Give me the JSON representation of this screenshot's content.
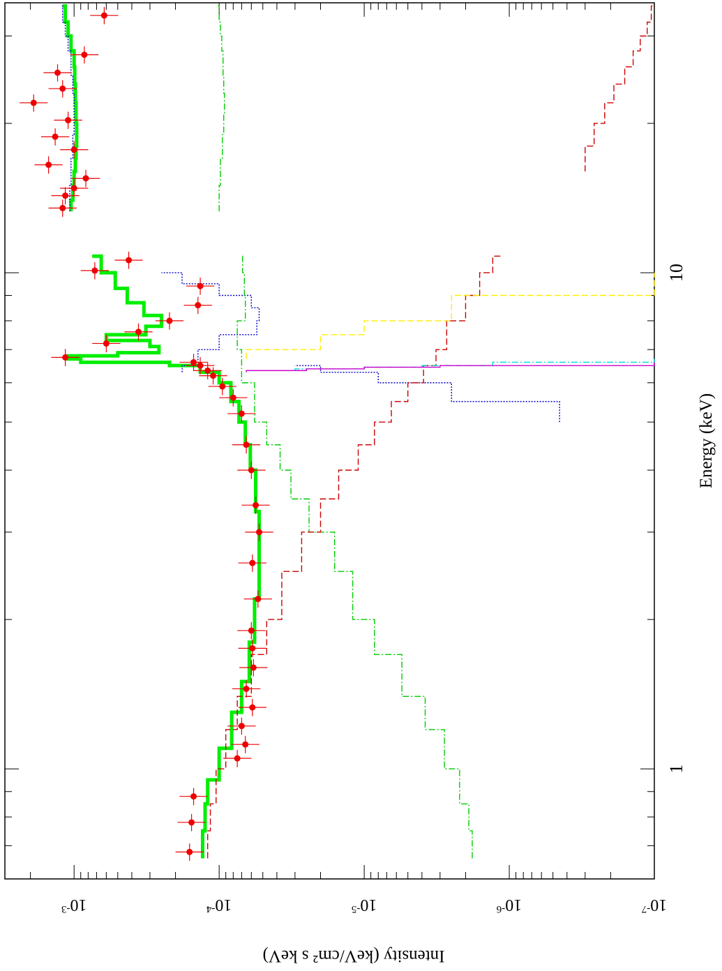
{
  "chart_data": {
    "type": "line",
    "orientation": "rotated-90",
    "xlabel": "Energy (keV)",
    "ylabel": "Intensity (keV/cm² s keV)",
    "x_scale": "log",
    "y_scale": "log",
    "xlim": [
      0.6,
      35
    ],
    "ylim": [
      1e-07,
      0.003
    ],
    "x_tick_labels": [
      {
        "value": 1,
        "label": "1"
      },
      {
        "value": 10,
        "label": "10"
      }
    ],
    "y_tick_labels": [
      {
        "value": 0.001,
        "base": "10",
        "exp": "-3"
      },
      {
        "value": 0.0001,
        "base": "10",
        "exp": "-4"
      },
      {
        "value": 1e-05,
        "base": "10",
        "exp": "-5"
      },
      {
        "value": 1e-06,
        "base": "10",
        "exp": "-6"
      },
      {
        "value": 1e-07,
        "base": "10",
        "exp": "-7"
      }
    ],
    "data_points": {
      "color": "#ee0000",
      "x": [
        0.68,
        0.78,
        0.88,
        1.05,
        1.12,
        1.22,
        1.33,
        1.45,
        1.6,
        1.75,
        1.9,
        2.2,
        2.6,
        3.0,
        3.4,
        4.0,
        4.5,
        5.2,
        5.6,
        5.9,
        6.2,
        6.35,
        6.5,
        6.6,
        6.75,
        7.2,
        7.6,
        8.0,
        8.6,
        9.4,
        10.1,
        10.6,
        13.5,
        14.3,
        14.8,
        15.5,
        16.5,
        17.7,
        18.8,
        20.3,
        22.0,
        23.5,
        25.3,
        27.5,
        33.0
      ],
      "y": [
        0.00016,
        0.000155,
        0.00015,
        7.5e-05,
        6.6e-05,
        7e-05,
        5.9e-05,
        6.5e-05,
        5.8e-05,
        5.9e-05,
        6e-05,
        5.4e-05,
        5.9e-05,
        5.3e-05,
        5.6e-05,
        6e-05,
        6.5e-05,
        7e-05,
        8e-05,
        9.5e-05,
        0.00011,
        0.00012,
        0.000135,
        0.00015,
        0.00115,
        0.0006,
        0.00036,
        0.00022,
        0.00014,
        0.000135,
        0.00072,
        0.00042,
        0.0012,
        0.00115,
        0.001,
        0.00083,
        0.0015,
        0.001,
        0.00135,
        0.0011,
        0.0019,
        0.0012,
        0.0013,
        0.00085,
        0.00062
      ]
    },
    "series": [
      {
        "color": "#00ee00",
        "style": "thick-solid",
        "x": [
          0.66,
          0.75,
          0.85,
          0.95,
          1.1,
          1.3,
          1.5,
          1.8,
          2.2,
          2.7,
          3.3,
          4.0,
          4.5,
          5.0,
          5.5,
          6.0,
          6.3,
          6.5,
          6.6,
          6.7,
          6.8,
          6.9,
          7.1,
          7.3,
          7.5,
          7.8,
          8.2,
          8.7,
          9.3,
          10.0,
          10.8
        ],
        "y": [
          0.00013,
          0.000125,
          0.00012,
          0.0001,
          8.2e-05,
          7e-05,
          6.2e-05,
          5.7e-05,
          5.3e-05,
          5.3e-05,
          5.6e-05,
          6.1e-05,
          6.6e-05,
          7.3e-05,
          8.3e-05,
          0.0001,
          0.000135,
          0.00022,
          0.0009,
          0.0011,
          0.0005,
          0.00026,
          0.0003,
          0.0006,
          0.00032,
          0.00025,
          0.00033,
          0.00043,
          0.00052,
          0.00065,
          0.00075
        ]
      },
      {
        "color": "#00ee00",
        "style": "thick-solid",
        "x": [
          13.3,
          14,
          15,
          16,
          17,
          18,
          19,
          20,
          22,
          24,
          26,
          28,
          30,
          32,
          34.5
        ],
        "y": [
          0.00105,
          0.00102,
          0.001,
          0.00098,
          0.00097,
          0.00096,
          0.00096,
          0.00097,
          0.00098,
          0.00099,
          0.001,
          0.00105,
          0.0011,
          0.00115,
          0.0012
        ]
      },
      {
        "color": "#0000cc",
        "style": "dotted",
        "x": [
          6.3,
          6.5,
          7.0,
          7.5,
          8.0,
          8.5,
          9.0,
          9.5,
          10.0
        ],
        "y": [
          0.00018,
          0.00014,
          0.0001,
          5.5e-05,
          5.3e-05,
          6e-05,
          0.0001,
          0.00018,
          0.00025
        ]
      },
      {
        "color": "#0000cc",
        "style": "dotted",
        "x": [
          13.3,
          15,
          17,
          19,
          21,
          23,
          25,
          28,
          30,
          32,
          34.5
        ],
        "y": [
          0.00107,
          0.00105,
          0.00102,
          0.001,
          0.001,
          0.00102,
          0.00105,
          0.0011,
          0.00115,
          0.0012,
          0.00122
        ]
      },
      {
        "color": "#0000cc",
        "style": "dotted",
        "x": [
          5.0,
          5.5,
          6.0,
          6.3,
          6.5
        ],
        "y": [
          4.5e-07,
          2.5e-06,
          8e-06,
          2e-05,
          3e-05
        ]
      },
      {
        "color": "#00cc00",
        "style": "dashdot",
        "x": [
          0.66,
          0.75,
          0.85,
          1.0,
          1.2,
          1.4,
          1.7,
          2.0,
          2.5,
          3.0,
          3.5,
          4.0,
          4.5,
          5.0,
          6.0,
          7.0,
          8.0,
          9.0,
          10.0,
          10.8
        ],
        "y": [
          1.8e-06,
          1.9e-06,
          2.2e-06,
          2.8e-06,
          3.8e-06,
          5.5e-06,
          8.5e-06,
          1.2e-05,
          1.6e-05,
          2.4e-05,
          3.2e-05,
          3.8e-05,
          4.7e-05,
          5.7e-05,
          7e-05,
          7.5e-05,
          6.6e-05,
          6.7e-05,
          6.9e-05,
          7e-05
        ]
      },
      {
        "color": "#00cc00",
        "style": "dashdot",
        "x": [
          13.3,
          15,
          17,
          19,
          21,
          23,
          25,
          28,
          30,
          32,
          34.5
        ],
        "y": [
          0.0001,
          9.8e-05,
          9.5e-05,
          9.3e-05,
          9.2e-05,
          9.3e-05,
          9.4e-05,
          9.6e-05,
          9.8e-05,
          0.0001,
          0.000102
        ]
      },
      {
        "color": "#cc0000",
        "style": "dashed",
        "x": [
          0.66,
          0.75,
          0.85,
          1.0,
          1.2,
          1.4,
          1.7,
          2.0,
          2.5,
          3.0,
          3.5,
          4.0,
          4.5,
          5.0,
          5.5,
          6.0,
          6.5,
          7.0,
          8.0,
          9.0,
          10.0,
          10.8
        ],
        "y": [
          0.00012,
          0.000115,
          0.000105,
          9e-05,
          7.5e-05,
          6e-05,
          4.7e-05,
          3.7e-05,
          2.7e-05,
          2e-05,
          1.5e-05,
          1.1e-05,
          8.5e-06,
          6.5e-06,
          5e-06,
          3.9e-06,
          3.2e-06,
          2.7e-06,
          2e-06,
          1.6e-06,
          1.3e-06,
          1.1e-06
        ]
      },
      {
        "color": "#cc0000",
        "style": "dashed",
        "x": [
          16,
          18,
          20,
          22,
          24,
          26,
          28,
          30,
          32,
          34.5
        ],
        "y": [
          3e-07,
          2.6e-07,
          2.2e-07,
          1.9e-07,
          1.6e-07,
          1.4e-07,
          1.25e-07,
          1.12e-07,
          1.05e-07,
          1e-07
        ]
      },
      {
        "color": "#ffee00",
        "style": "dashed",
        "x": [
          6.7,
          7.0,
          7.5,
          8.0,
          9.0,
          10.0
        ],
        "y": [
          6.5e-05,
          2e-05,
          1e-05,
          2.5e-06,
          1e-07,
          1e-07
        ]
      },
      {
        "color": "#00dddd",
        "style": "dashdot",
        "x": [
          6.35,
          6.4,
          6.45,
          6.5,
          6.6,
          6.7
        ],
        "y": [
          3e-05,
          1e-05,
          4e-06,
          1.3e-06,
          1e-07,
          1e-07
        ]
      },
      {
        "color": "#cc00cc",
        "style": "solid",
        "x": [
          6.3,
          6.35,
          6.4,
          6.45,
          6.5,
          6.6
        ],
        "y": [
          6.5e-05,
          2.5e-05,
          1e-05,
          3e-06,
          1e-07,
          1e-07
        ]
      }
    ]
  }
}
